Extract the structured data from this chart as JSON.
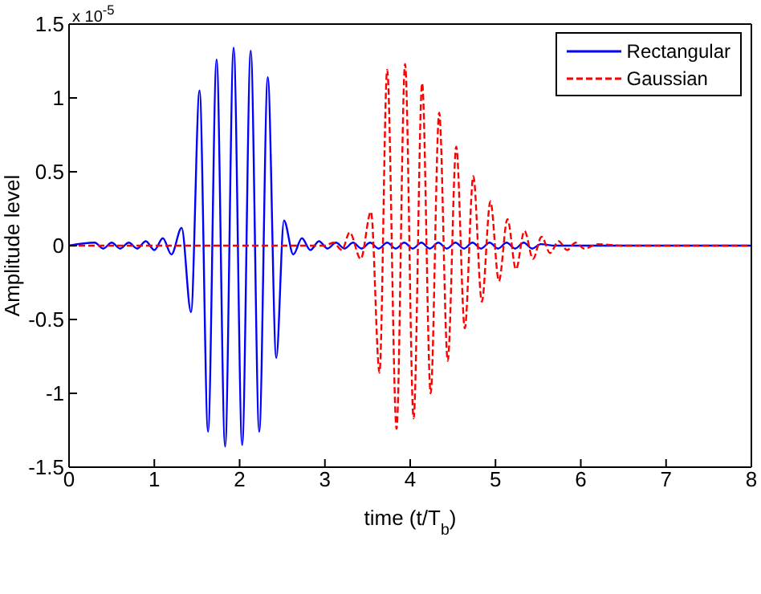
{
  "chart_data": {
    "type": "line",
    "xlabel": "time (t/T$_{b}$)",
    "ylabel": "Amplitude level",
    "annotations": [
      "x 10$^{-5}$"
    ],
    "xlim": [
      0,
      8
    ],
    "xticks": [
      0,
      1,
      2,
      3,
      4,
      5,
      6,
      7,
      8
    ],
    "ylim": [
      -1.5,
      1.5
    ],
    "yticks": [
      -1.5,
      -1,
      -0.5,
      0,
      0.5,
      1,
      1.5
    ],
    "grid": false,
    "legend": "top right",
    "marker": "none",
    "series": [
      {
        "name": "Rectangular",
        "color": "#0000ff",
        "line_style": "solid",
        "x": [
          0,
          0.3,
          0.4,
          0.5,
          0.6,
          0.7,
          0.8,
          0.9,
          1.0,
          1.1,
          1.2,
          1.32,
          1.43,
          1.53,
          1.63,
          1.73,
          1.83,
          1.93,
          2.03,
          2.13,
          2.23,
          2.33,
          2.43,
          2.52,
          2.63,
          2.73,
          2.83,
          2.93,
          3.03,
          3.13,
          3.23,
          3.33,
          3.43,
          3.53,
          3.63,
          3.73,
          3.83,
          3.93,
          4.03,
          4.13,
          4.23,
          4.33,
          4.43,
          4.53,
          4.63,
          4.73,
          4.83,
          4.93,
          5.03,
          5.13,
          5.23,
          5.33,
          5.43,
          5.53,
          5.7,
          6.0,
          8
        ],
        "values": [
          0,
          0.02,
          -0.02,
          0.02,
          -0.02,
          0.02,
          -0.02,
          0.03,
          -0.03,
          0.05,
          -0.06,
          0.12,
          -0.45,
          1.05,
          -1.26,
          1.26,
          -1.36,
          1.34,
          -1.35,
          1.32,
          -1.26,
          1.14,
          -0.76,
          0.17,
          -0.06,
          0.05,
          -0.03,
          0.03,
          -0.02,
          0.02,
          -0.02,
          0.02,
          -0.02,
          0.02,
          -0.02,
          0.02,
          -0.02,
          0.02,
          -0.02,
          0.02,
          -0.02,
          0.02,
          -0.02,
          0.02,
          -0.02,
          0.02,
          -0.02,
          0.02,
          -0.02,
          0.02,
          -0.02,
          0.02,
          -0.02,
          0.01,
          0,
          0,
          0
        ]
      },
      {
        "name": "Gaussian",
        "color": "#ff0000",
        "line_style": "dashed",
        "x": [
          0,
          3.0,
          3.1,
          3.2,
          3.29,
          3.42,
          3.54,
          3.64,
          3.73,
          3.84,
          3.94,
          4.04,
          4.14,
          4.24,
          4.34,
          4.44,
          4.54,
          4.64,
          4.74,
          4.84,
          4.94,
          5.04,
          5.14,
          5.24,
          5.34,
          5.44,
          5.54,
          5.64,
          5.74,
          5.84,
          5.94,
          6.04,
          6.2,
          6.5,
          8
        ],
        "values": [
          0,
          0,
          0.02,
          -0.03,
          0.09,
          -0.09,
          0.23,
          -0.86,
          1.19,
          -1.24,
          1.23,
          -1.17,
          1.1,
          -1.0,
          0.9,
          -0.78,
          0.67,
          -0.56,
          0.47,
          -0.38,
          0.3,
          -0.24,
          0.18,
          -0.16,
          0.1,
          -0.09,
          0.06,
          -0.05,
          0.03,
          -0.03,
          0.02,
          -0.02,
          0.01,
          0,
          0
        ]
      }
    ]
  }
}
